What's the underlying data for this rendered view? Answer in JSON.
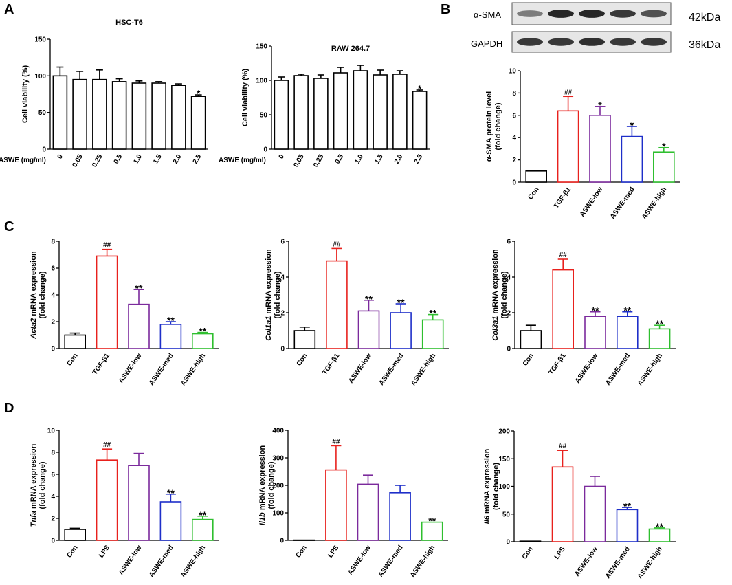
{
  "colors": {
    "Con": "#000000",
    "TGF-β1": "#e8211d",
    "LPS": "#e8211d",
    "ASWE-low": "#7b2a9c",
    "ASWE-med": "#1e2fc9",
    "ASWE-high": "#2fbf2f"
  },
  "panel_labels": {
    "A": "A",
    "B": "B",
    "C": "C",
    "D": "D"
  },
  "western_blot": {
    "bands": [
      {
        "label": "α-SMA",
        "kda": "42kDa",
        "intensity": [
          0.45,
          0.95,
          0.95,
          0.85,
          0.7
        ]
      },
      {
        "label": "GAPDH",
        "kda": "36kDa",
        "intensity": [
          0.85,
          0.85,
          0.9,
          0.85,
          0.85
        ]
      }
    ]
  },
  "chart_data": [
    {
      "id": "A1",
      "type": "bar",
      "title": "HSC-T6",
      "xlabel": "ASWE (mg/ml)",
      "ylabel": "Cell viability (%)",
      "ylim": [
        0,
        150
      ],
      "yticks": [
        "0",
        "50",
        "100",
        "150"
      ],
      "categories": [
        "0",
        "0.05",
        "0.25",
        "0.5",
        "1.0",
        "1.5",
        "2.0",
        "2.5"
      ],
      "values": [
        100,
        95,
        95,
        92,
        90,
        90,
        87,
        72
      ],
      "errors": [
        12,
        11,
        13,
        4,
        3,
        2,
        2,
        2
      ],
      "annotations": [
        "",
        "",
        "",
        "",
        "",
        "",
        "",
        "*"
      ],
      "colors": [
        "#000000",
        "#000000",
        "#000000",
        "#000000",
        "#000000",
        "#000000",
        "#000000",
        "#000000"
      ]
    },
    {
      "id": "A2",
      "type": "bar",
      "title": "RAW 264.7",
      "xlabel": "ASWE (mg/ml)",
      "ylabel": "Cell viability (%)",
      "ylim": [
        0,
        150
      ],
      "yticks": [
        "0",
        "50",
        "100",
        "150"
      ],
      "categories": [
        "0",
        "0.05",
        "0.25",
        "0.5",
        "1.0",
        "1.5",
        "2.0",
        "2.5"
      ],
      "values": [
        100,
        107,
        103,
        111,
        114,
        108,
        109,
        84
      ],
      "errors": [
        5,
        2,
        5,
        8,
        8,
        7,
        5,
        2
      ],
      "annotations": [
        "",
        "",
        "",
        "",
        "",
        "",
        "",
        "*"
      ],
      "colors": [
        "#000000",
        "#000000",
        "#000000",
        "#000000",
        "#000000",
        "#000000",
        "#000000",
        "#000000"
      ]
    },
    {
      "id": "B",
      "type": "bar",
      "title": "",
      "xlabel": "",
      "ylabel": "α-SMA protein level",
      "ylabel2": "(fold change)",
      "ylim": [
        0,
        10
      ],
      "yticks": [
        "0",
        "2",
        "4",
        "6",
        "8",
        "10"
      ],
      "categories": [
        "Con",
        "TGF-β1",
        "ASWE-low",
        "ASWE-med",
        "ASWE-high"
      ],
      "values": [
        1.0,
        6.4,
        6.0,
        4.1,
        2.7
      ],
      "errors": [
        0.05,
        1.3,
        0.8,
        0.9,
        0.4
      ],
      "annotations": [
        "",
        "##",
        "*",
        "*",
        "*"
      ],
      "colors": [
        "#000000",
        "#e8211d",
        "#7b2a9c",
        "#1e2fc9",
        "#2fbf2f"
      ]
    },
    {
      "id": "C1",
      "type": "bar",
      "title": "",
      "xlabel": "",
      "ylabel_italic": "Acta2",
      "ylabel_rest": " mRNA expression",
      "ylabel2": "(fold change)",
      "ylim": [
        0,
        8
      ],
      "yticks": [
        "0",
        "2",
        "4",
        "6",
        "8"
      ],
      "categories": [
        "Con",
        "TGF-β1",
        "ASWE-low",
        "ASWE-med",
        "ASWE-high"
      ],
      "values": [
        1.0,
        6.9,
        3.3,
        1.8,
        1.1
      ],
      "errors": [
        0.15,
        0.5,
        1.1,
        0.2,
        0.1
      ],
      "annotations": [
        "",
        "##",
        "**",
        "**",
        "**"
      ],
      "colors": [
        "#000000",
        "#e8211d",
        "#7b2a9c",
        "#1e2fc9",
        "#2fbf2f"
      ]
    },
    {
      "id": "C2",
      "type": "bar",
      "title": "",
      "xlabel": "",
      "ylabel_italic": "Col1a1",
      "ylabel_rest": " mRNA expression",
      "ylabel2": "(fold change)",
      "ylim": [
        0,
        6
      ],
      "yticks": [
        "0",
        "2",
        "4",
        "6"
      ],
      "categories": [
        "Con",
        "TGF-β1",
        "ASWE-low",
        "ASWE-med",
        "ASWE-high"
      ],
      "values": [
        1.0,
        4.9,
        2.1,
        2.0,
        1.6
      ],
      "errors": [
        0.2,
        0.7,
        0.6,
        0.5,
        0.3
      ],
      "annotations": [
        "",
        "##",
        "**",
        "**",
        "**"
      ],
      "colors": [
        "#000000",
        "#e8211d",
        "#7b2a9c",
        "#1e2fc9",
        "#2fbf2f"
      ]
    },
    {
      "id": "C3",
      "type": "bar",
      "title": "",
      "xlabel": "",
      "ylabel_italic": "Col3a1",
      "ylabel_rest": " mRNA expression",
      "ylabel2": "(fold change)",
      "ylim": [
        0,
        6
      ],
      "yticks": [
        "0",
        "2",
        "4",
        "6"
      ],
      "categories": [
        "Con",
        "TGF-β1",
        "ASWE-low",
        "ASWE-med",
        "ASWE-high"
      ],
      "values": [
        1.0,
        4.4,
        1.8,
        1.8,
        1.1
      ],
      "errors": [
        0.3,
        0.6,
        0.25,
        0.25,
        0.2
      ],
      "annotations": [
        "",
        "##",
        "**",
        "**",
        "**"
      ],
      "colors": [
        "#000000",
        "#e8211d",
        "#7b2a9c",
        "#1e2fc9",
        "#2fbf2f"
      ]
    },
    {
      "id": "D1",
      "type": "bar",
      "title": "",
      "xlabel": "",
      "ylabel_italic": "Tnfa",
      "ylabel_rest": " mRNA expression",
      "ylabel2": "(fold change)",
      "ylim": [
        0,
        10
      ],
      "yticks": [
        "0",
        "2",
        "4",
        "6",
        "8",
        "10"
      ],
      "categories": [
        "Con",
        "LPS",
        "ASWE-low",
        "ASWE-med",
        "ASWE-high"
      ],
      "values": [
        1.0,
        7.3,
        6.8,
        3.5,
        1.9
      ],
      "errors": [
        0.1,
        1.0,
        1.1,
        0.7,
        0.3
      ],
      "annotations": [
        "",
        "##",
        "",
        "**",
        "**"
      ],
      "colors": [
        "#000000",
        "#e8211d",
        "#7b2a9c",
        "#1e2fc9",
        "#2fbf2f"
      ]
    },
    {
      "id": "D2",
      "type": "bar",
      "title": "",
      "xlabel": "",
      "ylabel_italic": "Il1b",
      "ylabel_rest": " mRNA expression",
      "ylabel2": "(fold change)",
      "ylim": [
        0,
        400
      ],
      "yticks": [
        "0",
        "100",
        "200",
        "300",
        "400"
      ],
      "categories": [
        "Con",
        "LPS",
        "ASWE-low",
        "ASWE-med",
        "ASWE-high"
      ],
      "values": [
        1,
        256,
        204,
        173,
        66
      ],
      "errors": [
        0,
        88,
        33,
        27,
        0
      ],
      "annotations": [
        "",
        "##",
        "",
        "",
        "**"
      ],
      "colors": [
        "#000000",
        "#e8211d",
        "#7b2a9c",
        "#1e2fc9",
        "#2fbf2f"
      ]
    },
    {
      "id": "D3",
      "type": "bar",
      "title": "",
      "xlabel": "",
      "ylabel_italic": "Il6",
      "ylabel_rest": " mRNA expression",
      "ylabel2": "(fold change)",
      "ylim": [
        0,
        200
      ],
      "yticks": [
        "0",
        "50",
        "100",
        "150",
        "200"
      ],
      "categories": [
        "Con",
        "LPS",
        "ASWE-low",
        "ASWE-med",
        "ASWE-high"
      ],
      "values": [
        1,
        135,
        100,
        58,
        23
      ],
      "errors": [
        0,
        30,
        18,
        4,
        2
      ],
      "annotations": [
        "",
        "##",
        "",
        "**",
        "**"
      ],
      "colors": [
        "#000000",
        "#e8211d",
        "#7b2a9c",
        "#1e2fc9",
        "#2fbf2f"
      ]
    }
  ]
}
